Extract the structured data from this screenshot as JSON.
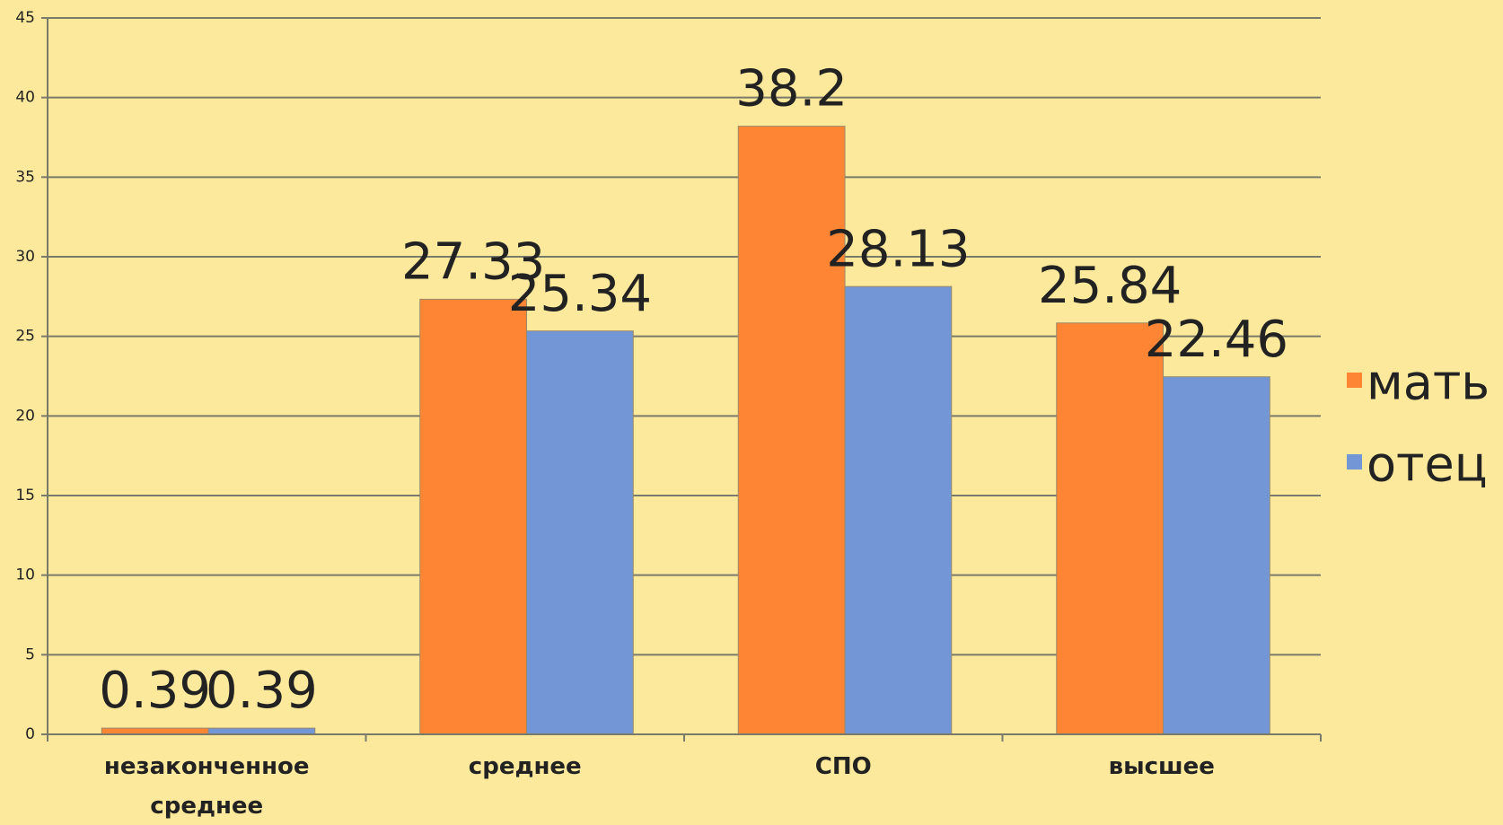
{
  "chart_data": {
    "type": "bar",
    "categories": [
      "незаконченное среднее",
      "среднее",
      "СПО",
      "высшее"
    ],
    "series": [
      {
        "name": "мать",
        "color": "#fd8533",
        "values": [
          0.39,
          27.33,
          38.2,
          25.84
        ]
      },
      {
        "name": "отец",
        "color": "#7397d6",
        "values": [
          0.39,
          25.34,
          28.13,
          22.46
        ]
      }
    ],
    "ylim": [
      0,
      45
    ],
    "yticks": [
      0,
      5,
      10,
      15,
      20,
      25,
      30,
      35,
      40,
      45
    ],
    "grid": true,
    "legend": "right"
  }
}
